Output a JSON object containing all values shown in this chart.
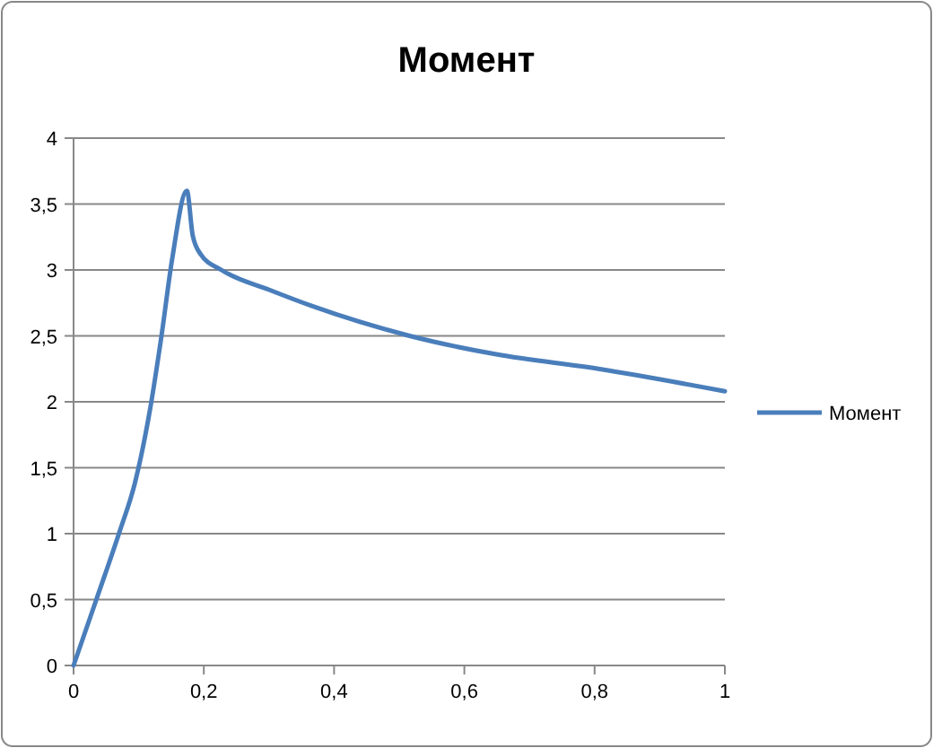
{
  "chart_data": {
    "type": "line",
    "title": "Момент",
    "series": [
      {
        "name": "Момент",
        "color": "#4a7ebb",
        "x": [
          0,
          0.035,
          0.071,
          0.094,
          0.117,
          0.135,
          0.151,
          0.174,
          0.183,
          0.195,
          0.227,
          0.3,
          0.364,
          0.516,
          0.649,
          0.806,
          1
        ],
        "values": [
          0,
          0.5,
          1.02,
          1.38,
          1.93,
          2.5,
          3.07,
          3.6,
          3.26,
          3.12,
          3.0,
          2.85,
          2.73,
          2.5,
          2.36,
          2.25,
          2.08
        ]
      }
    ],
    "xlim": [
      0,
      1
    ],
    "xticks": [
      0,
      {
        "value": 0.2,
        "label": "0,2"
      },
      {
        "value": 0.4,
        "label": "0,4"
      },
      {
        "value": 0.6,
        "label": "0,6"
      },
      {
        "value": 0.8,
        "label": "0,8"
      },
      1
    ],
    "ylim": [
      0,
      4
    ],
    "yticks": [
      0,
      {
        "value": 0.5,
        "label": "0,5"
      },
      1,
      {
        "value": 1.5,
        "label": "1,5"
      },
      2,
      {
        "value": 2.5,
        "label": "2,5"
      },
      3,
      {
        "value": 3.5,
        "label": "3,5"
      },
      4
    ],
    "grid": "y",
    "legend": "right",
    "marker": "none",
    "line_style": "solid"
  }
}
